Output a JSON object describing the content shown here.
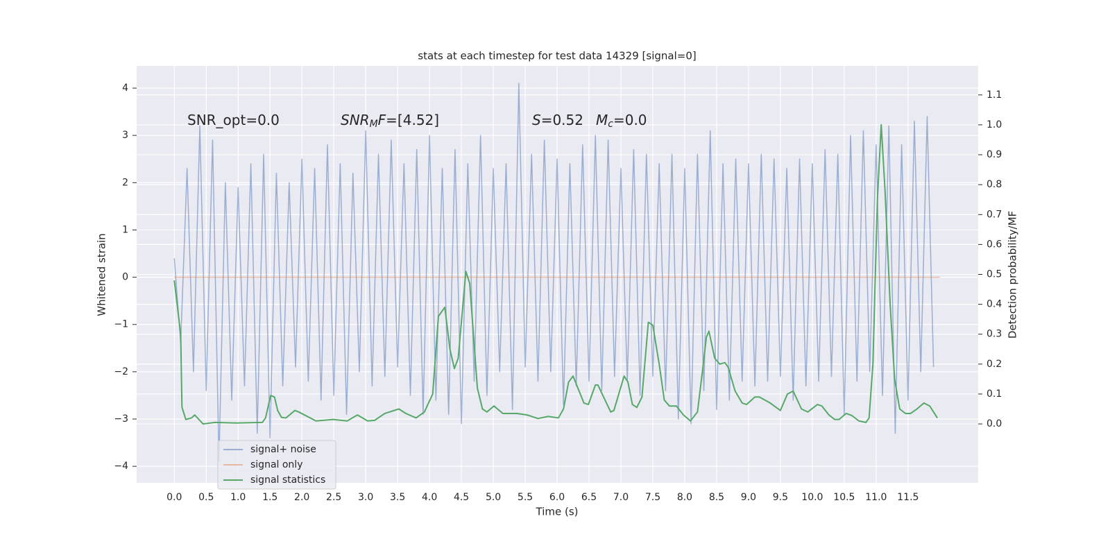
{
  "chart_data": {
    "type": "line",
    "title": "stats at each timestep for test data 14329 [signal=0]",
    "xlabel": "Time (s)",
    "ylabel": "Whitened strain",
    "y2label": "Detection probability/MF",
    "xlim": [
      -0.59,
      12.6
    ],
    "ylim": [
      -4.35,
      4.47
    ],
    "y2lim": [
      -0.197,
      1.197
    ],
    "grid": true,
    "legend": "lower left",
    "xticks": [
      {
        "value": 0,
        "label": "0.0"
      },
      0.5,
      {
        "value": 1,
        "label": "1.0"
      },
      1.5,
      {
        "value": 2,
        "label": "2.0"
      },
      2.5,
      {
        "value": 3,
        "label": "3.0"
      },
      3.5,
      {
        "value": 4,
        "label": "4.0"
      },
      4.5,
      {
        "value": 5,
        "label": "5.0"
      },
      5.5,
      {
        "value": 6,
        "label": "6.0"
      },
      6.5,
      {
        "value": 7,
        "label": "7.0"
      },
      7.5,
      {
        "value": 8,
        "label": "8.0"
      },
      8.5,
      {
        "value": 9,
        "label": "9.0"
      },
      9.5,
      {
        "value": 10,
        "label": "10.0"
      },
      10.5,
      {
        "value": 11,
        "label": "11.0"
      },
      11.5
    ],
    "yticks": [
      {
        "value": -4,
        "label": "−4"
      },
      {
        "value": -3,
        "label": "−3"
      },
      {
        "value": -2,
        "label": "−2"
      },
      {
        "value": -1,
        "label": "−1"
      },
      0,
      1,
      2,
      3,
      4
    ],
    "y2ticks": [
      {
        "value": 0,
        "label": "0.0"
      },
      0.1,
      0.2,
      0.3,
      0.4,
      0.5,
      0.6,
      0.7,
      0.8,
      0.9,
      {
        "value": 1,
        "label": "1.0"
      },
      1.1
    ],
    "annotations": [
      [
        {
          "text": "SNR_opt=0.0",
          "style": "normal"
        }
      ],
      [
        {
          "text": "SNR",
          "style": "italic"
        },
        {
          "text": "M",
          "style": "sub"
        },
        {
          "text": "F",
          "style": "italic"
        },
        {
          "text": "=[4.52]",
          "style": "normal"
        }
      ],
      [
        {
          "text": "S",
          "style": "italic"
        },
        {
          "text": "=0.52",
          "style": "normal"
        }
      ],
      [
        {
          "text": "M",
          "style": "italic"
        },
        {
          "text": "c",
          "style": "sub"
        },
        {
          "text": "=0.0",
          "style": "normal"
        }
      ]
    ],
    "series": [
      {
        "name": "signal+ noise",
        "color": "#4c72b0",
        "opacity": 0.5,
        "axis": "y",
        "x": [
          0.0,
          0.1,
          0.2,
          0.3,
          0.4,
          0.5,
          0.6,
          0.7,
          0.8,
          0.9,
          1.0,
          1.1,
          1.2,
          1.3,
          1.4,
          1.5,
          1.6,
          1.7,
          1.8,
          1.9,
          2.0,
          2.1,
          2.2,
          2.3,
          2.4,
          2.5,
          2.6,
          2.7,
          2.8,
          2.9,
          3.0,
          3.1,
          3.2,
          3.3,
          3.4,
          3.5,
          3.6,
          3.7,
          3.8,
          3.9,
          4.0,
          4.1,
          4.2,
          4.3,
          4.4,
          4.5,
          4.6,
          4.7,
          4.8,
          4.9,
          5.0,
          5.1,
          5.2,
          5.3,
          5.4,
          5.5,
          5.6,
          5.7,
          5.8,
          5.9,
          6.0,
          6.1,
          6.2,
          6.3,
          6.4,
          6.5,
          6.6,
          6.7,
          6.8,
          6.9,
          7.0,
          7.1,
          7.2,
          7.3,
          7.4,
          7.5,
          7.6,
          7.7,
          7.8,
          7.9,
          8.0,
          8.1,
          8.2,
          8.3,
          8.4,
          8.5,
          8.6,
          8.7,
          8.8,
          8.9,
          9.0,
          9.1,
          9.2,
          9.3,
          9.4,
          9.5,
          9.6,
          9.7,
          9.8,
          9.9,
          10.0,
          10.1,
          10.2,
          10.3,
          10.4,
          10.5,
          10.6,
          10.7,
          10.8,
          10.9,
          11.0,
          11.1,
          11.2,
          11.3,
          11.4,
          11.5,
          11.6,
          11.7,
          11.8,
          11.9
        ],
        "values": [
          0.4,
          -1.4,
          2.3,
          -2.0,
          3.2,
          -2.4,
          2.9,
          -3.9,
          2.0,
          -2.6,
          1.9,
          -2.3,
          2.4,
          -3.3,
          2.6,
          -3.4,
          2.2,
          -2.3,
          2.0,
          -1.9,
          2.5,
          -2.2,
          2.3,
          -2.6,
          2.8,
          -2.5,
          2.4,
          -2.9,
          2.2,
          -2.0,
          3.1,
          -2.3,
          2.6,
          -2.1,
          2.9,
          -1.9,
          2.4,
          -2.5,
          2.7,
          -2.9,
          3.0,
          -2.6,
          2.3,
          -2.9,
          2.7,
          -3.1,
          2.4,
          -2.2,
          3.0,
          -2.5,
          2.3,
          -2.0,
          2.4,
          -2.8,
          4.1,
          -1.9,
          2.6,
          -2.2,
          2.9,
          -2.0,
          2.5,
          -2.7,
          2.4,
          -2.3,
          2.8,
          -2.2,
          3.0,
          -2.4,
          2.9,
          -2.1,
          2.3,
          -2.2,
          2.7,
          -2.5,
          2.6,
          -2.1,
          2.4,
          -2.4,
          2.6,
          -3.0,
          2.3,
          -3.1,
          2.6,
          -2.4,
          3.1,
          -2.8,
          2.4,
          -2.6,
          2.5,
          -2.2,
          2.4,
          -2.3,
          2.6,
          -2.2,
          2.5,
          -2.1,
          2.3,
          -2.6,
          2.5,
          -2.3,
          2.4,
          -2.2,
          2.7,
          -2.1,
          2.6,
          -2.9,
          3.0,
          -2.2,
          3.1,
          -2.0,
          2.8,
          -2.5,
          3.2,
          -3.3,
          2.8,
          -2.6,
          3.3,
          -2.0,
          3.4,
          -1.9
        ]
      },
      {
        "name": "signal only",
        "color": "#dd8452",
        "opacity": 0.5,
        "axis": "y",
        "x": [
          0.0,
          12.0
        ],
        "values": [
          0,
          0
        ]
      },
      {
        "name": "signal statistics",
        "color": "#55a868",
        "opacity": 1,
        "axis": "y2",
        "x": [
          0.0,
          0.1,
          0.12,
          0.18,
          0.27,
          0.32,
          0.45,
          0.64,
          0.97,
          1.38,
          1.43,
          1.51,
          1.57,
          1.62,
          1.68,
          1.75,
          1.89,
          1.95,
          2.22,
          2.49,
          2.71,
          2.87,
          3.03,
          3.14,
          3.3,
          3.52,
          3.63,
          3.79,
          3.92,
          4.05,
          4.14,
          4.24,
          4.32,
          4.39,
          4.45,
          4.57,
          4.63,
          4.75,
          4.83,
          4.9,
          5.01,
          5.15,
          5.37,
          5.53,
          5.7,
          5.86,
          6.02,
          6.1,
          6.18,
          6.25,
          6.42,
          6.49,
          6.6,
          6.64,
          6.84,
          6.89,
          7.05,
          7.11,
          7.18,
          7.25,
          7.33,
          7.43,
          7.5,
          7.6,
          7.68,
          7.76,
          7.87,
          7.98,
          8.09,
          8.2,
          8.28,
          8.34,
          8.38,
          8.47,
          8.55,
          8.63,
          8.68,
          8.79,
          8.9,
          8.97,
          9.1,
          9.17,
          9.34,
          9.5,
          9.61,
          9.7,
          9.83,
          9.93,
          10.08,
          10.15,
          10.26,
          10.35,
          10.42,
          10.53,
          10.62,
          10.73,
          10.84,
          10.89,
          10.95,
          11.02,
          11.08,
          11.14,
          11.22,
          11.29,
          11.37,
          11.46,
          11.54,
          11.64,
          11.75,
          11.84,
          11.96
        ],
        "values": [
          0.48,
          0.3,
          0.056,
          0.015,
          0.02,
          0.03,
          0.0,
          0.005,
          0.003,
          0.005,
          0.02,
          0.095,
          0.09,
          0.045,
          0.022,
          0.02,
          0.045,
          0.04,
          0.01,
          0.015,
          0.01,
          0.03,
          0.01,
          0.012,
          0.035,
          0.05,
          0.035,
          0.02,
          0.04,
          0.1,
          0.36,
          0.39,
          0.25,
          0.185,
          0.22,
          0.51,
          0.47,
          0.12,
          0.05,
          0.04,
          0.06,
          0.035,
          0.035,
          0.03,
          0.018,
          0.025,
          0.02,
          0.05,
          0.14,
          0.16,
          0.07,
          0.065,
          0.13,
          0.13,
          0.04,
          0.045,
          0.16,
          0.14,
          0.065,
          0.055,
          0.09,
          0.34,
          0.33,
          0.2,
          0.08,
          0.06,
          0.06,
          0.03,
          0.01,
          0.04,
          0.18,
          0.29,
          0.31,
          0.22,
          0.2,
          0.205,
          0.19,
          0.11,
          0.07,
          0.065,
          0.09,
          0.09,
          0.07,
          0.045,
          0.1,
          0.11,
          0.05,
          0.04,
          0.065,
          0.06,
          0.03,
          0.015,
          0.015,
          0.035,
          0.028,
          0.01,
          0.005,
          0.02,
          0.2,
          0.75,
          1.0,
          0.78,
          0.4,
          0.15,
          0.05,
          0.035,
          0.035,
          0.05,
          0.07,
          0.06,
          0.02
        ]
      }
    ]
  }
}
